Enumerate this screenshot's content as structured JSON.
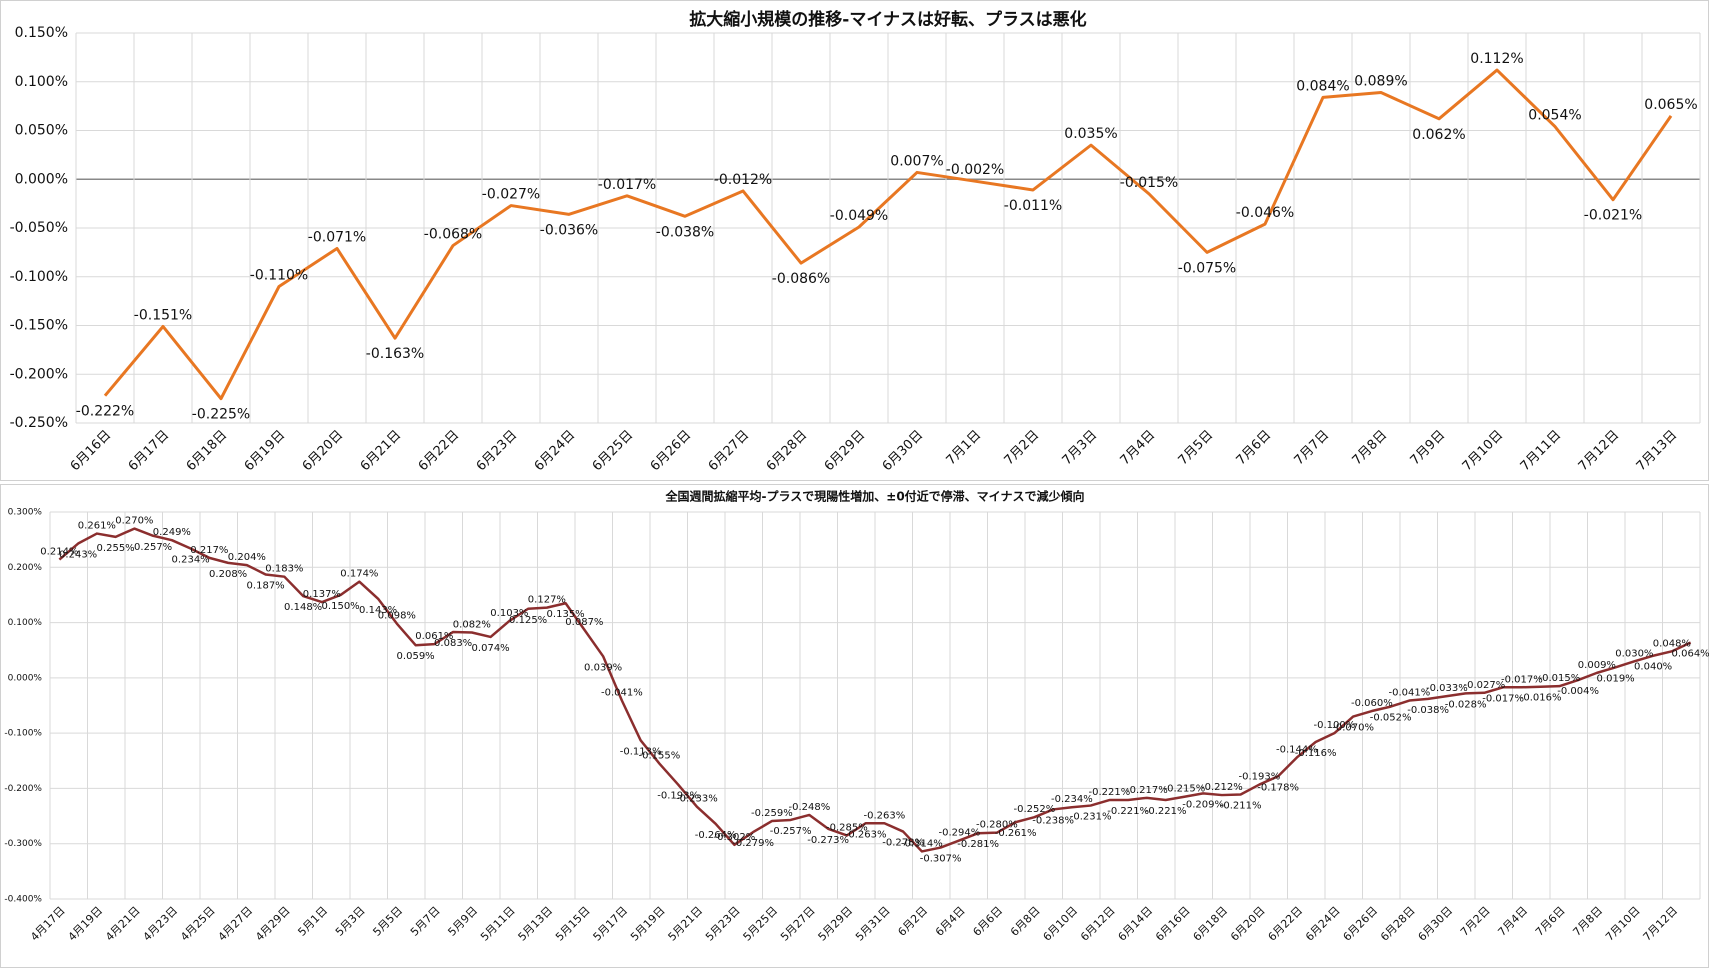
{
  "chart_data": [
    {
      "type": "line",
      "title": "拡大縮小規模の推移-マイナスは好転、プラスは悪化",
      "color": "#e87722",
      "categories": [
        "6月16日",
        "6月17日",
        "6月18日",
        "6月19日",
        "6月20日",
        "6月21日",
        "6月22日",
        "6月23日",
        "6月24日",
        "6月25日",
        "6月26日",
        "6月27日",
        "6月28日",
        "6月29日",
        "6月30日",
        "7月1日",
        "7月2日",
        "7月3日",
        "7月4日",
        "7月5日",
        "7月6日",
        "7月7日",
        "7月8日",
        "7月9日",
        "7月10日",
        "7月11日",
        "7月12日",
        "7月13日"
      ],
      "values": [
        -0.222,
        -0.151,
        -0.225,
        -0.11,
        -0.071,
        -0.163,
        -0.068,
        -0.027,
        -0.036,
        -0.017,
        -0.038,
        -0.012,
        -0.086,
        -0.049,
        0.007,
        -0.002,
        -0.011,
        0.035,
        -0.015,
        -0.075,
        -0.046,
        0.084,
        0.089,
        0.062,
        0.112,
        0.054,
        -0.021,
        0.065
      ],
      "value_labels": [
        "-0.222%",
        "-0.151%",
        "-0.225%",
        "-0.110%",
        "-0.071%",
        "-0.163%",
        "-0.068%",
        "-0.027%",
        "-0.036%",
        "-0.017%",
        "-0.038%",
        "-0.012%",
        "-0.086%",
        "-0.049%",
        "0.007%",
        "-0.002%",
        "-0.011%",
        "0.035%",
        "-0.015%",
        "-0.075%",
        "-0.046%",
        "0.084%",
        "0.089%",
        "0.062%",
        "0.112%",
        "0.054%",
        "-0.021%",
        "0.065%"
      ],
      "ylim": [
        -0.25,
        0.15
      ],
      "yticks": [
        {
          "value": -0.25,
          "label": "-0.250%"
        },
        {
          "value": -0.2,
          "label": "-0.200%"
        },
        {
          "value": -0.15,
          "label": "-0.150%"
        },
        {
          "value": -0.1,
          "label": "-0.100%"
        },
        {
          "value": -0.05,
          "label": "-0.050%"
        },
        {
          "value": 0,
          "label": "0.000%"
        },
        {
          "value": 0.05,
          "label": "0.050%"
        },
        {
          "value": 0.1,
          "label": "0.100%"
        },
        {
          "value": 0.15,
          "label": "0.150%"
        }
      ],
      "grid": true
    },
    {
      "type": "line",
      "title": "全国週間拡縮平均-プラスで現陽性増加、±0付近で停滞、マイナスで減少傾向",
      "color": "#8b2e2e",
      "categories": [
        "4月17日",
        null,
        "4月19日",
        null,
        "4月21日",
        null,
        "4月23日",
        null,
        "4月25日",
        null,
        "4月27日",
        null,
        "4月29日",
        null,
        "5月1日",
        null,
        "5月3日",
        null,
        "5月5日",
        null,
        "5月7日",
        null,
        "5月9日",
        null,
        "5月11日",
        null,
        "5月13日",
        null,
        "5月15日",
        null,
        "5月17日",
        null,
        "5月19日",
        null,
        "5月21日",
        null,
        "5月23日",
        null,
        "5月25日",
        null,
        "5月27日",
        null,
        "5月29日",
        null,
        "5月31日",
        null,
        "6月2日",
        null,
        "6月4日",
        null,
        "6月6日",
        null,
        "6月8日",
        null,
        "6月10日",
        null,
        "6月12日",
        null,
        "6月14日",
        null,
        "6月16日",
        null,
        "6月18日",
        null,
        "6月20日",
        null,
        "6月22日",
        null,
        "6月24日",
        null,
        "6月26日",
        null,
        "6月28日",
        null,
        "6月30日",
        null,
        "7月2日",
        null,
        "7月4日",
        null,
        "7月6日",
        null,
        "7月8日",
        null,
        "7月10日",
        null,
        "7月12日",
        null
      ],
      "values": [
        0.214,
        0.243,
        0.261,
        0.255,
        0.27,
        0.257,
        0.249,
        0.234,
        0.217,
        0.208,
        0.204,
        0.187,
        0.183,
        0.148,
        0.137,
        0.15,
        0.174,
        0.143,
        0.098,
        0.059,
        0.061,
        0.083,
        0.082,
        0.074,
        0.103,
        0.125,
        0.127,
        0.135,
        0.087,
        0.039,
        -0.041,
        -0.113,
        -0.155,
        -0.193,
        -0.233,
        -0.264,
        -0.302,
        -0.279,
        -0.259,
        -0.257,
        -0.248,
        -0.273,
        -0.285,
        -0.263,
        -0.263,
        -0.278,
        -0.314,
        -0.307,
        -0.294,
        -0.281,
        -0.28,
        -0.261,
        -0.252,
        -0.238,
        -0.234,
        -0.231,
        -0.221,
        -0.221,
        -0.217,
        -0.221,
        -0.215,
        -0.209,
        -0.212,
        -0.211,
        -0.193,
        -0.178,
        -0.144,
        -0.116,
        -0.1,
        -0.07,
        -0.06,
        -0.052,
        -0.041,
        -0.038,
        -0.033,
        -0.028,
        -0.027,
        -0.017,
        -0.017,
        -0.016,
        -0.015,
        -0.004,
        0.009,
        0.019,
        0.03,
        0.04,
        0.048,
        0.064
      ],
      "value_labels": [
        "0.214%",
        "0.243%",
        "0.261%",
        "0.255%",
        "0.270%",
        "0.257%",
        "0.249%",
        "0.234%",
        "0.217%",
        "0.208%",
        "0.204%",
        "0.187%",
        "0.183%",
        "0.148%",
        "0.137%",
        "0.150%",
        "0.174%",
        "0.143%",
        "0.098%",
        "0.059%",
        "0.061%",
        "0.083%",
        "0.082%",
        "0.074%",
        "0.103%",
        "0.125%",
        "0.127%",
        "0.135%",
        "0.087%",
        "0.039%",
        "-0.041%",
        "-0.113%",
        "-0.155%",
        "-0.193%",
        "-0.233%",
        "-0.264%",
        "-0.302%",
        "-0.279%",
        "-0.259%",
        "-0.257%",
        "-0.248%",
        "-0.273%",
        "-0.285%",
        "-0.263%",
        "-0.263%",
        "-0.278%",
        "-0.314%",
        "-0.307%",
        "-0.294%",
        "-0.281%",
        "-0.280%",
        "-0.261%",
        "-0.252%",
        "-0.238%",
        "-0.234%",
        "-0.231%",
        "-0.221%",
        "-0.221%",
        "-0.217%",
        "-0.221%",
        "-0.215%",
        "-0.209%",
        "-0.212%",
        "-0.211%",
        "-0.193%",
        "-0.178%",
        "-0.144%",
        "-0.116%",
        "-0.100%",
        "-0.070%",
        "-0.060%",
        "-0.052%",
        "-0.041%",
        "-0.038%",
        "-0.033%",
        "-0.028%",
        "-0.027%",
        "-0.017%",
        "-0.017%",
        "-0.016%",
        "-0.015%",
        "-0.004%",
        "0.009%",
        "0.019%",
        "0.030%",
        "0.040%",
        "0.048%",
        "0.064%"
      ],
      "ylim": [
        -0.4,
        0.3
      ],
      "yticks": [
        {
          "value": -0.4,
          "label": "-0.400%"
        },
        {
          "value": -0.3,
          "label": "-0.300%"
        },
        {
          "value": -0.2,
          "label": "-0.200%"
        },
        {
          "value": -0.1,
          "label": "-0.100%"
        },
        {
          "value": 0,
          "label": "0.000%"
        },
        {
          "value": 0.1,
          "label": "0.100%"
        },
        {
          "value": 0.2,
          "label": "0.200%"
        },
        {
          "value": 0.3,
          "label": "0.300%"
        }
      ],
      "grid": true
    }
  ]
}
